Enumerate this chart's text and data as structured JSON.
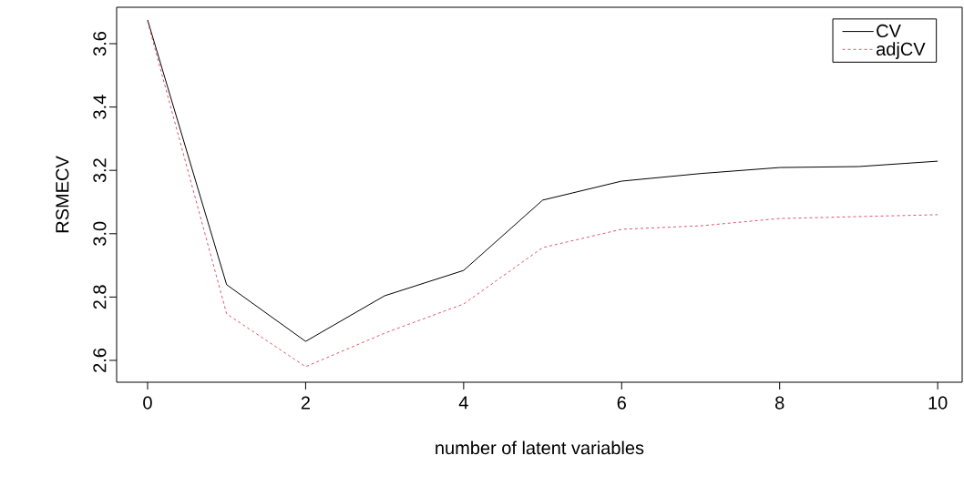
{
  "chart_data": {
    "type": "line",
    "xlabel": "number of latent variables",
    "ylabel": "RSMECV",
    "x": [
      0,
      1,
      2,
      3,
      4,
      5,
      6,
      7,
      8,
      9,
      10
    ],
    "series": [
      {
        "name": "CV",
        "color": "#000000",
        "line_style": "solid",
        "values": [
          3.675,
          2.839,
          2.66,
          2.804,
          2.884,
          3.106,
          3.166,
          3.19,
          3.209,
          3.212,
          3.229
        ]
      },
      {
        "name": "adjCV",
        "color": "#df536b",
        "line_style": "dashed",
        "values": [
          3.67,
          2.747,
          2.58,
          2.686,
          2.778,
          2.956,
          3.014,
          3.025,
          3.048,
          3.054,
          3.06
        ]
      }
    ],
    "xlim": [
      -0.392,
      10.31
    ],
    "ylim": [
      2.531,
      3.715
    ],
    "xticks": [
      0,
      2,
      4,
      6,
      8,
      10
    ],
    "yticks": [
      2.6,
      2.8,
      {
        "value": 3,
        "label": "3.0"
      },
      3.2,
      3.4,
      3.6
    ],
    "legend": "top right"
  }
}
